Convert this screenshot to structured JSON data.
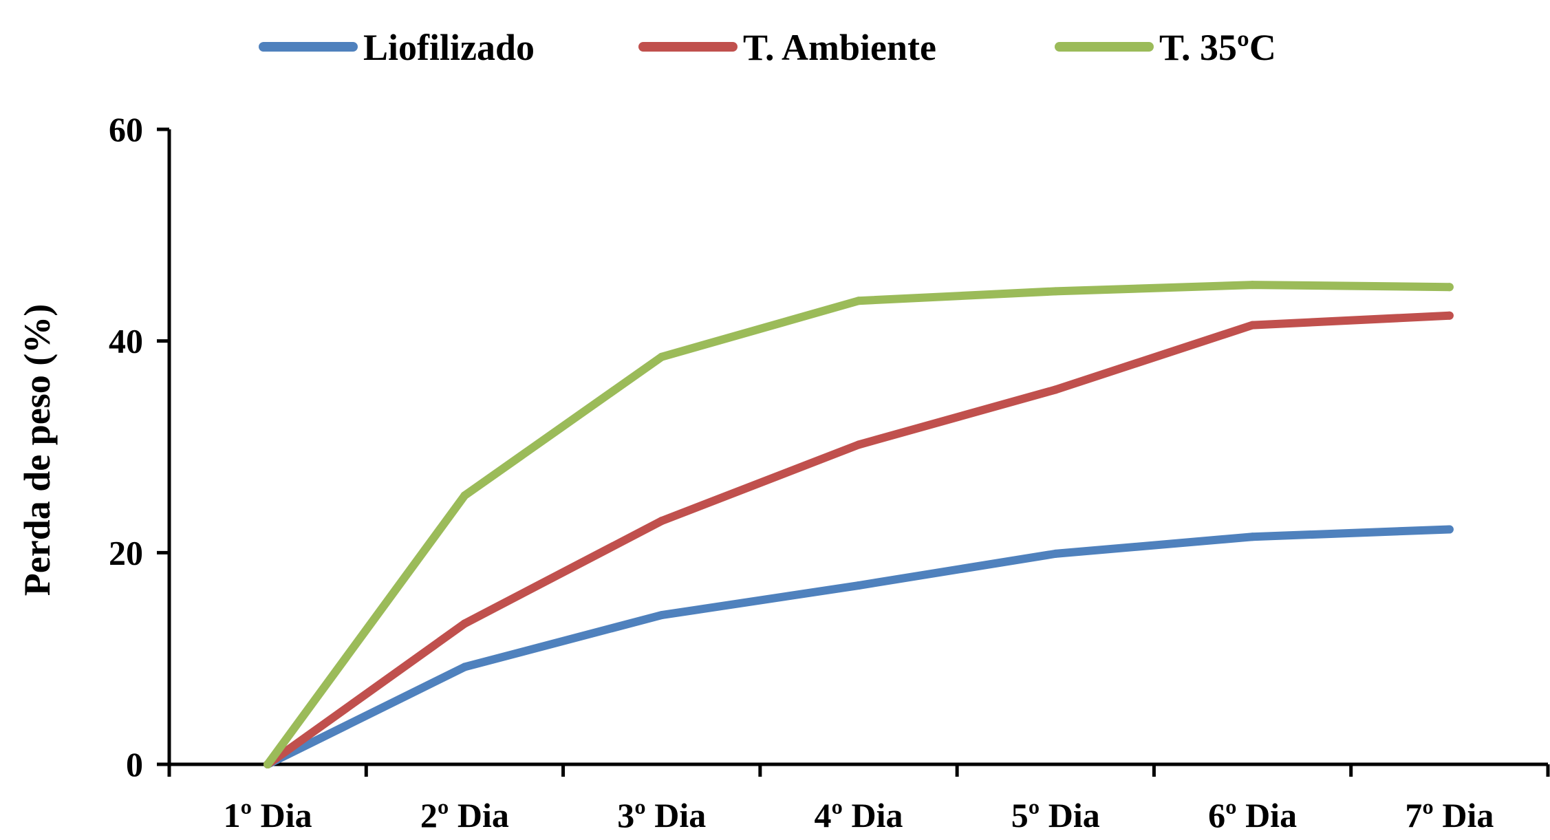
{
  "chart_data": {
    "type": "line",
    "categories": [
      "1º Dia",
      "2º Dia",
      "3º Dia",
      "4º Dia",
      "5º Dia",
      "6º Dia",
      "7º Dia"
    ],
    "series": [
      {
        "name": "Liofilizado",
        "color": "#4F81BD",
        "values": [
          0,
          9.2,
          14.1,
          16.9,
          19.9,
          21.5,
          22.2
        ]
      },
      {
        "name": "T. Ambiente",
        "color": "#C0504D",
        "values": [
          0,
          13.3,
          23.0,
          30.2,
          35.4,
          41.5,
          42.4
        ]
      },
      {
        "name": "T. 35ºC",
        "color": "#9BBB59",
        "values": [
          0,
          25.4,
          38.5,
          43.8,
          44.7,
          45.3,
          45.1
        ]
      }
    ],
    "title": "",
    "xlabel": "",
    "ylabel": "Perda de peso (%)",
    "ylim": [
      0,
      60
    ],
    "yticks": [
      "0",
      "20",
      "40",
      "60"
    ],
    "grid": false,
    "legend_position": "top-center"
  }
}
